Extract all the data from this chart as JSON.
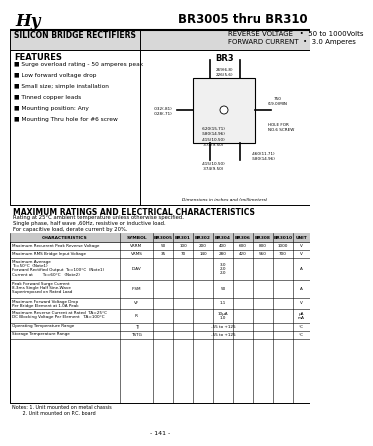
{
  "title": "BR3005 thru BR310",
  "subtitle_left": "SILICON BRIDGE RECTIFIERS",
  "subtitle_right1": "REVERSE VOLTAGE   •  50 to 1000Volts",
  "subtitle_right2": "FORWARD CURRENT  •  3.0 Amperes",
  "features_title": "FEATURES",
  "features": [
    "Surge overload rating - 50 amperes peak",
    "Low forward voltage drop",
    "Small size; simple installation",
    "Tinned copper leads",
    "Mounting position: Any",
    "Mounting Thru hole for #6 screw"
  ],
  "diagram_label": "BR3",
  "ratings_title": "MAXIMUM RATINGS AND ELECTRICAL CHARACTERISTICS",
  "ratings_note1": "Rating at 25°C ambient temperature unless otherwise specified.",
  "ratings_note2": "Single phase, half wave ,60Hz, resistive or inductive load.",
  "ratings_note3": "For capacitive load, derate current by 20%.",
  "table_headers": [
    "CHARACTERISTICS",
    "SYMBOL",
    "BR3005",
    "BR301",
    "BR302",
    "BR304",
    "BR306",
    "BR308",
    "BR3010",
    "UNIT"
  ],
  "table_rows": [
    [
      "Maximum Recurrent Peak Reverse Voltage",
      "VRRM",
      "50",
      "100",
      "200",
      "400",
      "600",
      "800",
      "1000",
      "V"
    ],
    [
      "Maximum RMS Bridge Input Voltage",
      "VRMS",
      "35",
      "70",
      "140",
      "280",
      "420",
      "560",
      "700",
      "V"
    ],
    [
      "Maximum Average\nTc=50°C  (Note1)\nForward Rectified Output  Tc=100°C  (Note1)\nCurrent at        Tc=60°C   (Note2)",
      "IOAV",
      "",
      "",
      "",
      "3.0\n2.0\n2.0",
      "",
      "",
      "",
      "A"
    ],
    [
      "Peak Forward Surge Current\n8.3ms Single Half Sine-Wave\nSuperimposed on Rated Load",
      "IFSM",
      "",
      "",
      "",
      "50",
      "",
      "",
      "",
      "A"
    ],
    [
      "Maximum Forward Voltage Drop\nPer Bridge Element at 1.0A Peak",
      "VF",
      "",
      "",
      "",
      "1.1",
      "",
      "",
      "",
      "V"
    ],
    [
      "Maximum Reverse Current at Rated  TA=25°C\nDC Blocking Voltage Per Element   TA=100°C",
      "IR",
      "",
      "",
      "",
      "10μA\n1.0",
      "",
      "",
      "",
      "μA\nmA"
    ],
    [
      "Operating Temperature Range",
      "TJ",
      "",
      "",
      "",
      "-55 to +125",
      "",
      "",
      "",
      "°C"
    ],
    [
      "Storage Temperature Range",
      "TSTG",
      "",
      "",
      "",
      "-55 to +125",
      "",
      "",
      "",
      "°C"
    ]
  ],
  "notes": [
    "Notes: 1. Unit mounted on metal chassis",
    "       2. Unit mounted on P.C. board"
  ],
  "page_number": "- 141 -",
  "bg_color": "#ffffff",
  "text_color": "#000000",
  "logo_color": "#000000",
  "col_positions": [
    0,
    110,
    143,
    163,
    183,
    203,
    223,
    243,
    263,
    283,
    300
  ]
}
